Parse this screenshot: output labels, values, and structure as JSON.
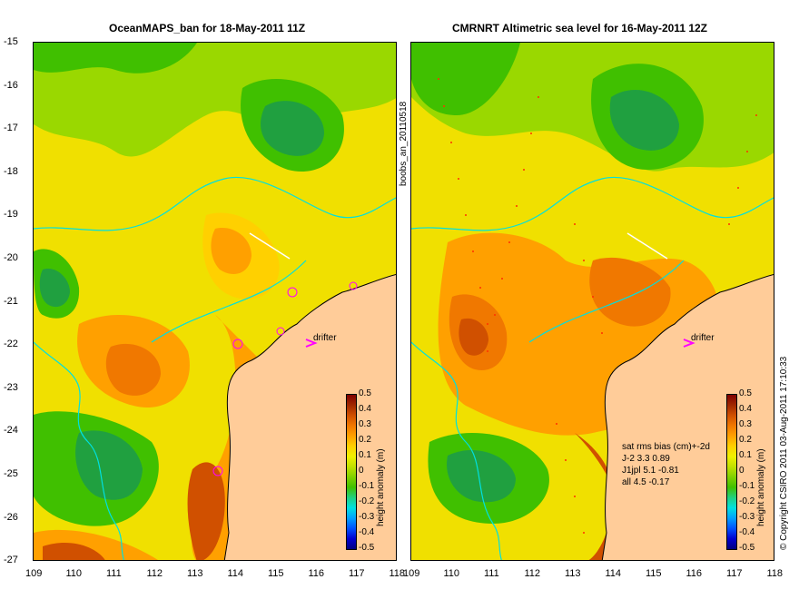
{
  "left_panel": {
    "title": "OceanMAPS_ban for 18-May-2011 11Z",
    "drifter_label": "drifter",
    "side_label": "boobs_an_20110518"
  },
  "right_panel": {
    "title": "CMRNRT Altimetric sea level  for 16-May-2011 12Z",
    "drifter_label": "drifter",
    "stats": {
      "header": "sat rms bias (cm)+-2d",
      "rows": [
        "J-2   3.3 0.89",
        "J1jpl 5.1 -0.81",
        "all 4.5 -0.17"
      ]
    },
    "copyright": "© Copyright CSIRO 2011  03-Aug-2011 17:10:33"
  },
  "axes": {
    "lat_ticks": [
      "-15",
      "-16",
      "-17",
      "-18",
      "-19",
      "-20",
      "-21",
      "-22",
      "-23",
      "-24",
      "-25",
      "-26",
      "-27"
    ],
    "lon_ticks": [
      "109",
      "110",
      "111",
      "112",
      "113",
      "114",
      "115",
      "116",
      "117",
      "118"
    ]
  },
  "colorbar": {
    "label": "height anomaly (m)",
    "ticks": [
      "0.5",
      "0.4",
      "0.3",
      "0.2",
      "0.1",
      "0",
      "-0.1",
      "-0.2",
      "-0.3",
      "-0.4",
      "-0.5"
    ],
    "colors": [
      "#000080",
      "#0000d0",
      "#0050ff",
      "#00a0ff",
      "#00e0e0",
      "#20d080",
      "#40c000",
      "#80d000",
      "#c0e000",
      "#f0f000",
      "#ffd000",
      "#ffa000",
      "#f07800",
      "#d05000",
      "#a02800",
      "#800000"
    ]
  },
  "colors": {
    "land": "#ffcc99",
    "coastline": "#00e0e0",
    "drifter_marker": "#ff00ff"
  }
}
